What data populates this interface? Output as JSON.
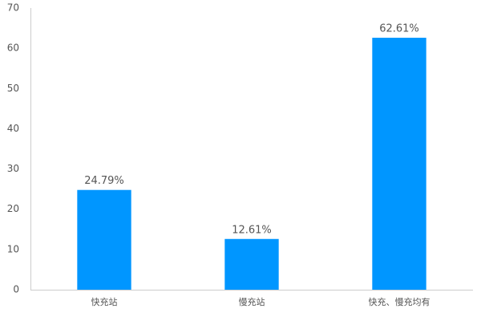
{
  "chart_data": {
    "type": "bar",
    "categories": [
      "快充站",
      "慢充站",
      "快充、慢充均有"
    ],
    "values": [
      24.79,
      12.61,
      62.61
    ],
    "value_labels": [
      "24.79%",
      "12.61%",
      "62.61%"
    ],
    "color": "#0096ff",
    "ylim": [
      0,
      70
    ],
    "yticks": [
      0,
      10,
      20,
      30,
      40,
      50,
      60,
      70
    ],
    "grid": false
  }
}
